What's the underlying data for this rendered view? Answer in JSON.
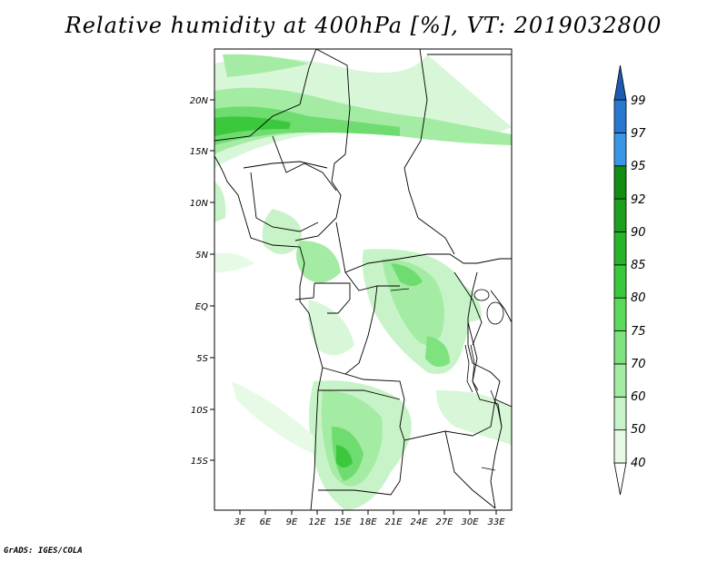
{
  "title": "Relative humidity at 400hPa [%], VT: 2019032800",
  "credit": "GrADS: IGES/COLA",
  "map": {
    "lat_labels": [
      "20N",
      "15N",
      "10N",
      "5N",
      "EQ",
      "5S",
      "10S",
      "15S"
    ],
    "lon_labels": [
      "3E",
      "6E",
      "9E",
      "12E",
      "15E",
      "18E",
      "21E",
      "24E",
      "27E",
      "30E",
      "33E"
    ]
  },
  "colorbar": {
    "labels": [
      "40",
      "50",
      "60",
      "70",
      "75",
      "80",
      "85",
      "90",
      "92",
      "95",
      "97",
      "99"
    ],
    "colors": [
      "#ffffff",
      "#e6fae6",
      "#c8f3c8",
      "#a4eba4",
      "#7ee27e",
      "#5ad95a",
      "#3cc83c",
      "#28b428",
      "#1e9e1e",
      "#128c12",
      "#3c96e6",
      "#2878d2",
      "#1e5ab4"
    ]
  }
}
